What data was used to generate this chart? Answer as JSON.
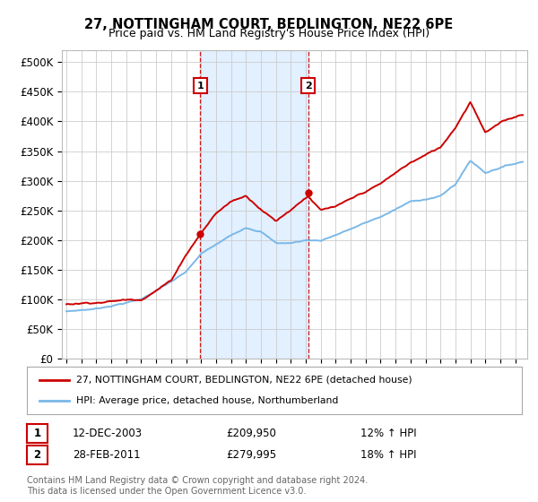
{
  "title": "27, NOTTINGHAM COURT, BEDLINGTON, NE22 6PE",
  "subtitle": "Price paid vs. HM Land Registry's House Price Index (HPI)",
  "ylabel_ticks": [
    "£0",
    "£50K",
    "£100K",
    "£150K",
    "£200K",
    "£250K",
    "£300K",
    "£350K",
    "£400K",
    "£450K",
    "£500K"
  ],
  "ytick_values": [
    0,
    50000,
    100000,
    150000,
    200000,
    250000,
    300000,
    350000,
    400000,
    450000,
    500000
  ],
  "ylim": [
    0,
    520000
  ],
  "xlim_start": 1994.7,
  "xlim_end": 2025.8,
  "hpi_color": "#7ab8e8",
  "price_color": "#cc0000",
  "sale1_x": 2003.95,
  "sale1_y": 209950,
  "sale2_x": 2011.16,
  "sale2_y": 279995,
  "sale1_label": "1",
  "sale2_label": "2",
  "sale1_date": "12-DEC-2003",
  "sale1_price": "£209,950",
  "sale1_hpi": "12% ↑ HPI",
  "sale2_date": "28-FEB-2011",
  "sale2_price": "£279,995",
  "sale2_hpi": "18% ↑ HPI",
  "legend_line1": "27, NOTTINGHAM COURT, BEDLINGTON, NE22 6PE (detached house)",
  "legend_line2": "HPI: Average price, detached house, Northumberland",
  "footer1": "Contains HM Land Registry data © Crown copyright and database right 2024.",
  "footer2": "This data is licensed under the Open Government Licence v3.0.",
  "shaded_start": 2003.95,
  "shaded_end": 2011.16,
  "background_color": "#ffffff",
  "grid_color": "#cccccc"
}
